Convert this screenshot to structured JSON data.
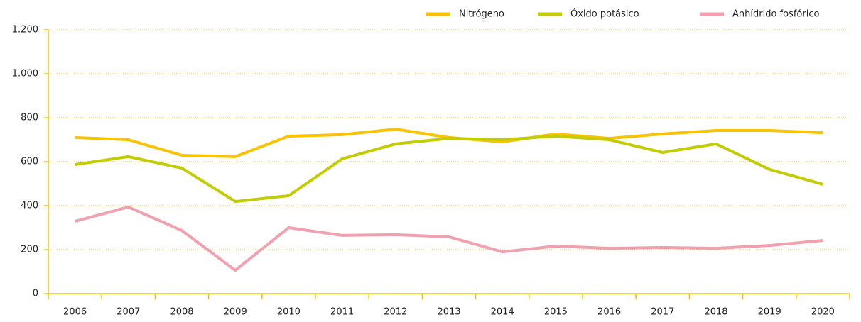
{
  "chart_data": {
    "type": "line",
    "categories": [
      "2006",
      "2007",
      "2008",
      "2009",
      "2010",
      "2011",
      "2012",
      "2013",
      "2014",
      "2015",
      "2016",
      "2017",
      "2018",
      "2019",
      "2020"
    ],
    "series": [
      {
        "name": "Nitrógeno",
        "color": "#f9c300",
        "values": [
          710,
          700,
          629,
          623,
          716,
          723,
          748,
          710,
          690,
          726,
          706,
          726,
          742,
          742,
          732
        ]
      },
      {
        "name": "Óxido potásico",
        "color": "#c3cc00",
        "values": [
          587,
          623,
          571,
          419,
          445,
          613,
          681,
          706,
          700,
          716,
          700,
          642,
          681,
          565,
          497
        ]
      },
      {
        "name": "Anhídrido fosfórico",
        "color": "#f0a0ae",
        "values": [
          329,
          394,
          287,
          106,
          300,
          265,
          268,
          258,
          190,
          216,
          206,
          210,
          206,
          219,
          242
        ]
      }
    ],
    "ylim": [
      0,
      1200
    ],
    "yticks": [
      0,
      200,
      400,
      600,
      800,
      {
        "value": 1000,
        "label": "1.000"
      },
      {
        "value": 1200,
        "label": "1.200"
      }
    ],
    "grid": true,
    "legend": "top-right"
  }
}
